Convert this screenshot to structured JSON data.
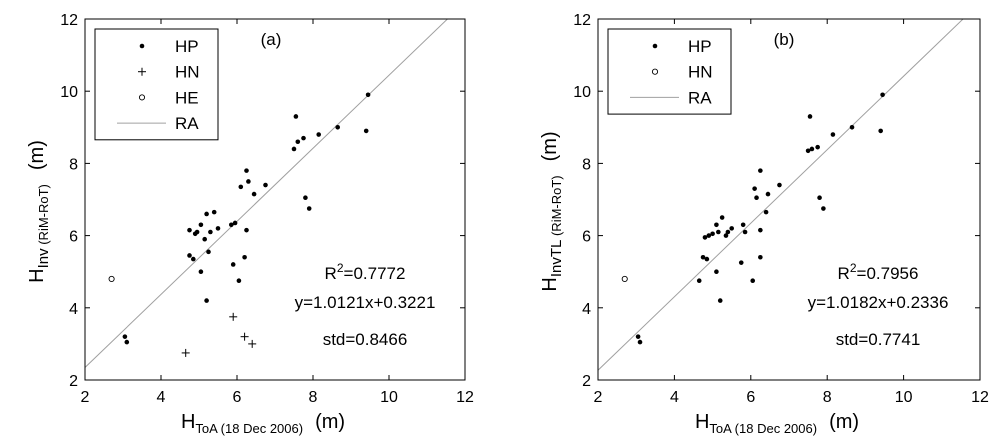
{
  "figure": {
    "background": "#ffffff",
    "ink_color": "#000000",
    "ra_line_color": "#a0a0a0"
  },
  "chart_data": [
    {
      "type": "scatter",
      "panel_label": "(a)",
      "xlabel": {
        "main": "H",
        "sub": "ToA (18 Dec 2006)",
        "unit": "(m)"
      },
      "ylabel": {
        "main": "H",
        "sub_inv": "Inv",
        "sub_rest": " (RiM-RoT)",
        "unit": "(m)"
      },
      "xlim": [
        2,
        12
      ],
      "ylim": [
        2,
        12
      ],
      "xticks": [
        "2",
        "4",
        "6",
        "8",
        "10",
        "12"
      ],
      "yticks": [
        "2",
        "4",
        "6",
        "8",
        "10",
        "12"
      ],
      "grid": false,
      "legend_position": "top-left",
      "legend": [
        {
          "label": "HP",
          "marker": "dot"
        },
        {
          "label": "HN",
          "marker": "plus"
        },
        {
          "label": "HE",
          "marker": "circle"
        },
        {
          "label": "RA",
          "marker": "line"
        }
      ],
      "annotations": {
        "r2_prefix": "R",
        "r2_sup": "2",
        "r2_value": "=0.7772",
        "equation": "y=1.0121x+0.3221",
        "std": "std=0.8466"
      },
      "fit_line": {
        "name": "RA",
        "slope": 1.0121,
        "intercept": 0.3221
      },
      "series": [
        {
          "name": "HP",
          "marker": "dot",
          "points": [
            [
              3.05,
              3.2
            ],
            [
              3.1,
              3.05
            ],
            [
              4.75,
              6.15
            ],
            [
              4.75,
              5.45
            ],
            [
              4.85,
              5.35
            ],
            [
              4.9,
              6.05
            ],
            [
              4.95,
              6.1
            ],
            [
              5.05,
              5.0
            ],
            [
              5.05,
              6.3
            ],
            [
              5.15,
              5.9
            ],
            [
              5.2,
              6.6
            ],
            [
              5.25,
              5.55
            ],
            [
              5.3,
              6.1
            ],
            [
              5.4,
              6.65
            ],
            [
              5.5,
              6.2
            ],
            [
              5.85,
              6.3
            ],
            [
              5.9,
              5.2
            ],
            [
              5.95,
              6.35
            ],
            [
              6.05,
              4.75
            ],
            [
              6.1,
              7.35
            ],
            [
              6.2,
              5.4
            ],
            [
              6.25,
              6.15
            ],
            [
              6.25,
              7.8
            ],
            [
              6.3,
              7.5
            ],
            [
              6.45,
              7.15
            ],
            [
              6.75,
              7.4
            ],
            [
              7.5,
              8.4
            ],
            [
              7.55,
              9.3
            ],
            [
              7.6,
              8.6
            ],
            [
              7.75,
              8.7
            ],
            [
              7.8,
              7.05
            ],
            [
              7.9,
              6.75
            ],
            [
              8.15,
              8.8
            ],
            [
              8.65,
              9.0
            ],
            [
              9.4,
              8.9
            ],
            [
              9.45,
              9.9
            ],
            [
              5.2,
              4.2
            ]
          ]
        },
        {
          "name": "HN",
          "marker": "plus",
          "points": [
            [
              4.65,
              2.75
            ],
            [
              5.9,
              3.75
            ],
            [
              6.2,
              3.2
            ],
            [
              6.4,
              3.0
            ]
          ]
        },
        {
          "name": "HE",
          "marker": "circle",
          "points": [
            [
              2.7,
              4.8
            ]
          ]
        }
      ]
    },
    {
      "type": "scatter",
      "panel_label": "(b)",
      "xlabel": {
        "main": "H",
        "sub": "ToA (18 Dec 2006)",
        "unit": "(m)"
      },
      "ylabel": {
        "main": "H",
        "sub_inv": "InvTL",
        "sub_rest": " (RiM-RoT)",
        "unit": "(m)"
      },
      "xlim": [
        2,
        12
      ],
      "ylim": [
        2,
        12
      ],
      "xticks": [
        "2",
        "4",
        "6",
        "8",
        "10",
        "12"
      ],
      "yticks": [
        "2",
        "4",
        "6",
        "8",
        "10",
        "12"
      ],
      "grid": false,
      "legend_position": "top-left",
      "legend": [
        {
          "label": "HP",
          "marker": "dot"
        },
        {
          "label": "HN",
          "marker": "circle"
        },
        {
          "label": "RA",
          "marker": "line"
        }
      ],
      "annotations": {
        "r2_prefix": "R",
        "r2_sup": "2",
        "r2_value": "=0.7956",
        "equation": "y=1.0182x+0.2336",
        "std": "std=0.7741"
      },
      "fit_line": {
        "name": "RA",
        "slope": 1.0182,
        "intercept": 0.2336
      },
      "series": [
        {
          "name": "HP",
          "marker": "dot",
          "points": [
            [
              3.05,
              3.2
            ],
            [
              3.1,
              3.05
            ],
            [
              4.65,
              4.75
            ],
            [
              4.75,
              5.4
            ],
            [
              4.8,
              5.95
            ],
            [
              4.85,
              5.35
            ],
            [
              4.9,
              6.0
            ],
            [
              5.0,
              6.05
            ],
            [
              5.1,
              5.0
            ],
            [
              5.1,
              6.3
            ],
            [
              5.15,
              6.1
            ],
            [
              5.2,
              4.2
            ],
            [
              5.25,
              6.5
            ],
            [
              5.35,
              6.0
            ],
            [
              5.4,
              6.1
            ],
            [
              5.5,
              6.2
            ],
            [
              5.75,
              5.25
            ],
            [
              5.8,
              6.3
            ],
            [
              5.85,
              6.1
            ],
            [
              6.05,
              4.75
            ],
            [
              6.1,
              7.3
            ],
            [
              6.15,
              7.05
            ],
            [
              6.25,
              5.4
            ],
            [
              6.25,
              6.15
            ],
            [
              6.25,
              7.8
            ],
            [
              6.4,
              6.65
            ],
            [
              6.45,
              7.15
            ],
            [
              6.75,
              7.4
            ],
            [
              7.5,
              8.35
            ],
            [
              7.55,
              9.3
            ],
            [
              7.6,
              8.4
            ],
            [
              7.75,
              8.45
            ],
            [
              7.8,
              7.05
            ],
            [
              7.9,
              6.75
            ],
            [
              8.15,
              8.8
            ],
            [
              8.65,
              9.0
            ],
            [
              9.4,
              8.9
            ],
            [
              9.45,
              9.9
            ]
          ]
        },
        {
          "name": "HN",
          "marker": "circle",
          "points": [
            [
              2.7,
              4.8
            ]
          ]
        }
      ]
    }
  ]
}
